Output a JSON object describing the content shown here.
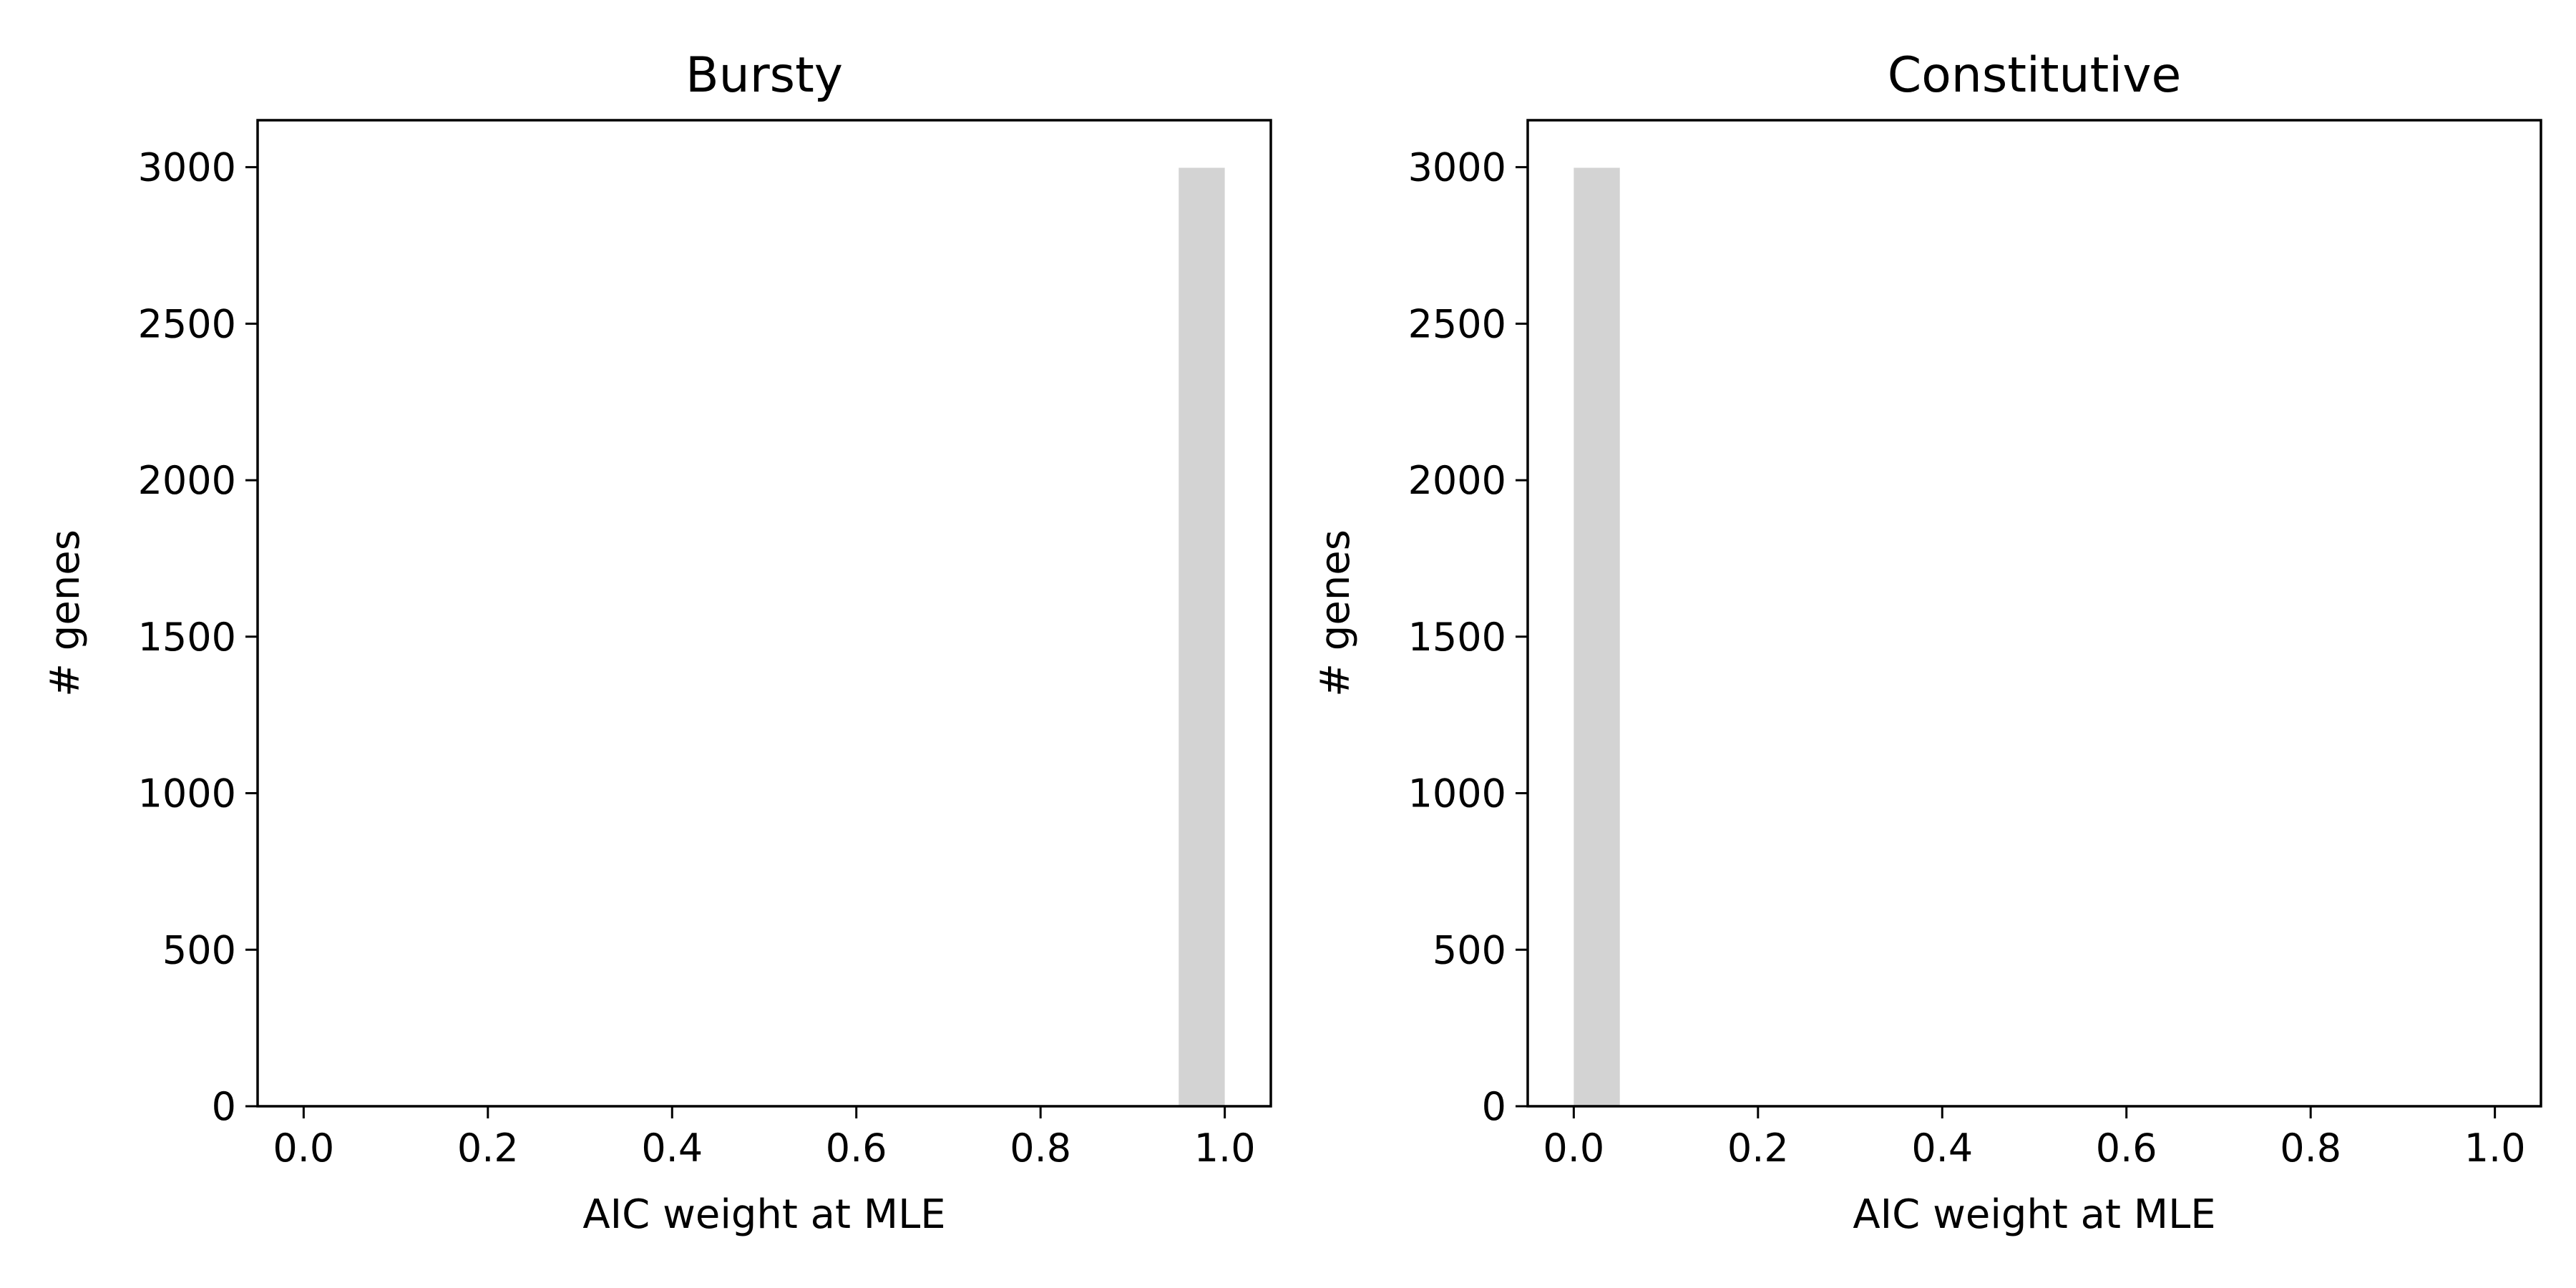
{
  "chart_data": [
    {
      "type": "bar",
      "title": "Bursty",
      "xlabel": "AIC weight at MLE",
      "ylabel": "# genes",
      "xlim": [
        -0.05,
        1.05
      ],
      "ylim": [
        0,
        3150
      ],
      "xticks": [
        0.0,
        0.2,
        0.4,
        0.6,
        0.8,
        1.0
      ],
      "xtick_labels": [
        "0.0",
        "0.2",
        "0.4",
        "0.6",
        "0.8",
        "1.0"
      ],
      "yticks": [
        0,
        500,
        1000,
        1500,
        2000,
        2500,
        3000
      ],
      "ytick_labels": [
        "0",
        "500",
        "1000",
        "1500",
        "2000",
        "2500",
        "3000"
      ],
      "bin_edges": [
        0.0,
        0.05,
        0.1,
        0.15,
        0.2,
        0.25,
        0.3,
        0.35,
        0.4,
        0.45,
        0.5,
        0.55,
        0.6,
        0.65,
        0.7,
        0.75,
        0.8,
        0.85,
        0.9,
        0.95,
        1.0
      ],
      "values": [
        2,
        0,
        0,
        0,
        0,
        0,
        0,
        0,
        0,
        0,
        0,
        0,
        0,
        0,
        0,
        0,
        0,
        0,
        0,
        2998
      ],
      "bar_color": "#d3d3d3",
      "grid": false
    },
    {
      "type": "bar",
      "title": "Constitutive",
      "xlabel": "AIC weight at MLE",
      "ylabel": "# genes",
      "xlim": [
        -0.05,
        1.05
      ],
      "ylim": [
        0,
        3150
      ],
      "xticks": [
        0.0,
        0.2,
        0.4,
        0.6,
        0.8,
        1.0
      ],
      "xtick_labels": [
        "0.0",
        "0.2",
        "0.4",
        "0.6",
        "0.8",
        "1.0"
      ],
      "yticks": [
        0,
        500,
        1000,
        1500,
        2000,
        2500,
        3000
      ],
      "ytick_labels": [
        "0",
        "500",
        "1000",
        "1500",
        "2000",
        "2500",
        "3000"
      ],
      "bin_edges": [
        0.0,
        0.05,
        0.1,
        0.15,
        0.2,
        0.25,
        0.3,
        0.35,
        0.4,
        0.45,
        0.5,
        0.55,
        0.6,
        0.65,
        0.7,
        0.75,
        0.8,
        0.85,
        0.9,
        0.95,
        1.0
      ],
      "values": [
        2998,
        0,
        0,
        0,
        0,
        0,
        0,
        0,
        0,
        0,
        0,
        0,
        0,
        0,
        0,
        0,
        0,
        0,
        0,
        2
      ],
      "bar_color": "#d3d3d3",
      "grid": false
    }
  ]
}
